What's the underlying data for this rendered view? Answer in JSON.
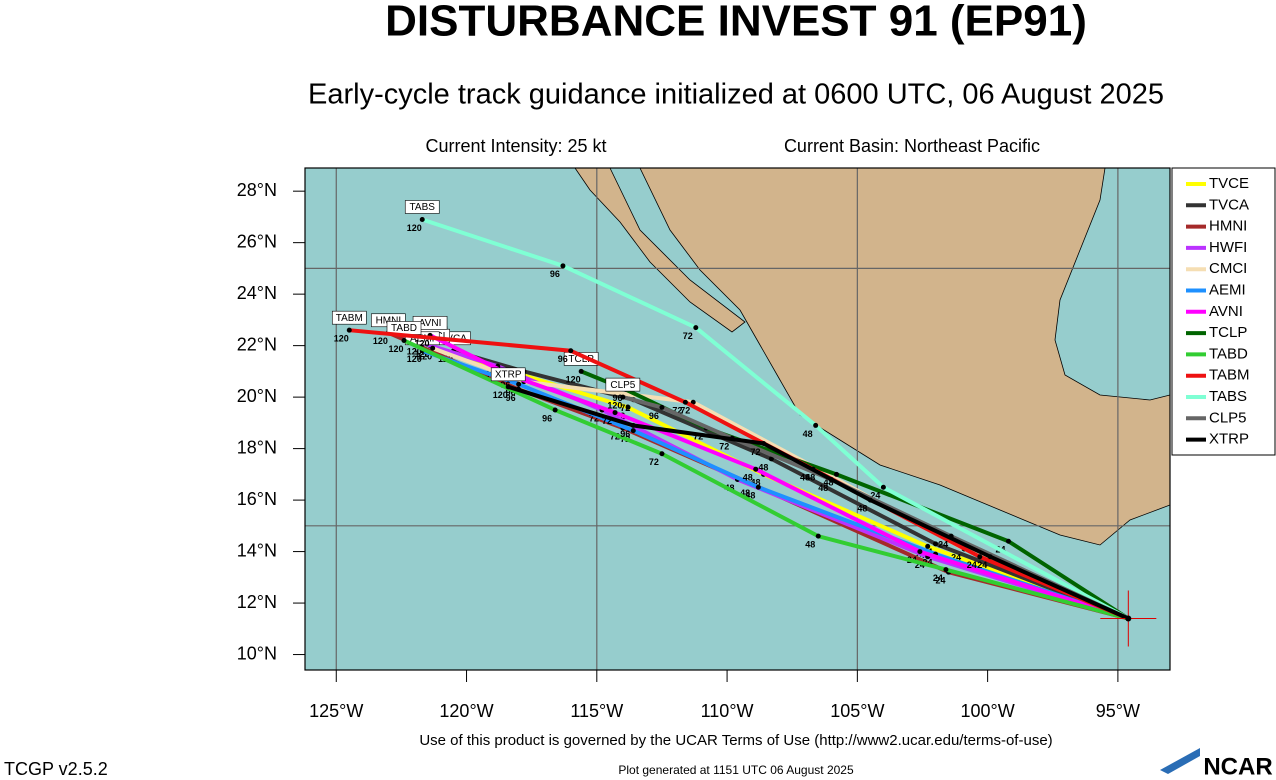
{
  "chart_data": {
    "type": "track_map",
    "title": "DISTURBANCE INVEST 91 (EP91)",
    "subtitle": "Early-cycle track guidance initialized at 0600 UTC, 06 August 2025",
    "intensity": "Current Intensity: 25 kt",
    "basin": "Current Basin: Northeast Pacific",
    "terms": "Use of this product is governed by the UCAR Terms of Use (http://www2.ucar.edu/terms-of-use)",
    "version": "TCGP v2.5.2",
    "generated": "Plot generated at 1151 UTC   06 August 2025",
    "logo": "NCAR",
    "xlim": [
      -126.2,
      -93.0
    ],
    "ylim": [
      9.4,
      28.9
    ],
    "xticks": [
      {
        "value": -125,
        "label": "125°W"
      },
      {
        "value": -120,
        "label": "120°W"
      },
      {
        "value": -115,
        "label": "115°W"
      },
      {
        "value": -110,
        "label": "110°W"
      },
      {
        "value": -105,
        "label": "105°W"
      },
      {
        "value": -100,
        "label": "100°W"
      },
      {
        "value": -95,
        "label": "95°W"
      }
    ],
    "yticks": [
      {
        "value": 10,
        "label": "10°N"
      },
      {
        "value": 12,
        "label": "12°N"
      },
      {
        "value": 14,
        "label": "14°N"
      },
      {
        "value": 16,
        "label": "16°N"
      },
      {
        "value": 18,
        "label": "18°N"
      },
      {
        "value": 20,
        "label": "20°N"
      },
      {
        "value": 22,
        "label": "22°N"
      },
      {
        "value": 24,
        "label": "24°N"
      },
      {
        "value": 26,
        "label": "26°N"
      },
      {
        "value": 28,
        "label": "28°N"
      }
    ],
    "grid_lon": [
      -125,
      -115,
      -105,
      -95
    ],
    "grid_lat": [
      15,
      25
    ],
    "hours": [
      0,
      24,
      48,
      72,
      96,
      120
    ],
    "current_position": {
      "lon": -94.6,
      "lat": 11.4
    },
    "series": [
      {
        "name": "TVCE",
        "color": "#ffff00",
        "lon": [
          -94.6,
          -102.3,
          -108.6,
          -113.8,
          -118.3,
          -121.4
        ],
        "lat": [
          11.4,
          14.2,
          17.0,
          19.6,
          21.0,
          22.0
        ]
      },
      {
        "name": "TVCA",
        "color": "#333333",
        "lon": [
          -94.6,
          -102.0,
          -108.3,
          -113.6,
          -117.8,
          -120.5
        ],
        "lat": [
          11.4,
          14.3,
          17.6,
          19.9,
          21.0,
          21.8
        ]
      },
      {
        "name": "HMNI",
        "color": "#a52a2a",
        "lon": [
          -94.6,
          -101.5,
          -109.0,
          -114.0,
          -118.0,
          -123.0
        ],
        "lat": [
          11.4,
          13.2,
          16.6,
          18.8,
          20.3,
          22.5
        ]
      },
      {
        "name": "HWFI",
        "color": "#bb33ff",
        "lon": [
          -94.6,
          -102.3,
          -109.6,
          -114.8,
          -118.8,
          -121.7
        ],
        "lat": [
          11.4,
          13.8,
          16.8,
          19.5,
          21.2,
          22.1
        ]
      },
      {
        "name": "CMCI",
        "color": "#f5deb3",
        "lon": [
          -94.6,
          -100.9,
          -106.5,
          -111.3,
          -117.8,
          -121.3
        ],
        "lat": [
          11.4,
          14.1,
          17.2,
          19.8,
          20.6,
          21.9
        ]
      },
      {
        "name": "AEMI",
        "color": "#1e90ff",
        "lon": [
          -94.6,
          -102.0,
          -108.8,
          -113.6,
          -118.0,
          -121.7
        ],
        "lat": [
          11.4,
          13.9,
          16.5,
          18.7,
          20.5,
          21.8
        ]
      },
      {
        "name": "AVNI",
        "color": "#ff00ff",
        "lon": [
          -94.6,
          -102.6,
          -108.9,
          -114.3,
          -118.2,
          -121.4
        ],
        "lat": [
          11.4,
          14.0,
          17.2,
          19.4,
          20.8,
          22.4
        ]
      },
      {
        "name": "TCLP",
        "color": "#006400",
        "lon": [
          -94.6,
          -99.2,
          -105.8,
          -110.8,
          -113.9,
          -115.6
        ],
        "lat": [
          11.4,
          14.4,
          17.0,
          18.8,
          20.3,
          21.0
        ]
      },
      {
        "name": "TABD",
        "color": "#32cd32",
        "lon": [
          -94.6,
          -101.6,
          -106.5,
          -112.5,
          -116.6,
          -122.4
        ],
        "lat": [
          11.4,
          13.3,
          14.6,
          17.8,
          19.5,
          22.2
        ]
      },
      {
        "name": "TABM",
        "color": "#ee1111",
        "lon": [
          -94.6,
          -100.3,
          -106.7,
          -111.6,
          -116.0,
          -124.5
        ],
        "lat": [
          11.4,
          13.8,
          17.2,
          19.8,
          21.8,
          22.6
        ]
      },
      {
        "name": "TABS",
        "color": "#7fffd4",
        "lon": [
          -94.6,
          -104.0,
          -106.6,
          -111.2,
          -116.3,
          -121.7
        ],
        "lat": [
          11.4,
          16.5,
          18.9,
          22.7,
          25.1,
          26.9
        ]
      },
      {
        "name": "CLP5",
        "color": "#666666",
        "lon": [
          -94.6,
          -101.4,
          -106.0,
          -109.8,
          -112.5,
          -114.0
        ],
        "lat": [
          11.4,
          14.6,
          16.8,
          18.4,
          19.6,
          20.0
        ]
      },
      {
        "name": "XTRP",
        "color": "#000000",
        "lon": [
          -94.6,
          -99.9,
          -104.5,
          -108.6,
          -113.6,
          -118.4
        ],
        "lat": [
          11.4,
          13.8,
          16.0,
          18.2,
          18.9,
          20.4
        ]
      }
    ]
  }
}
